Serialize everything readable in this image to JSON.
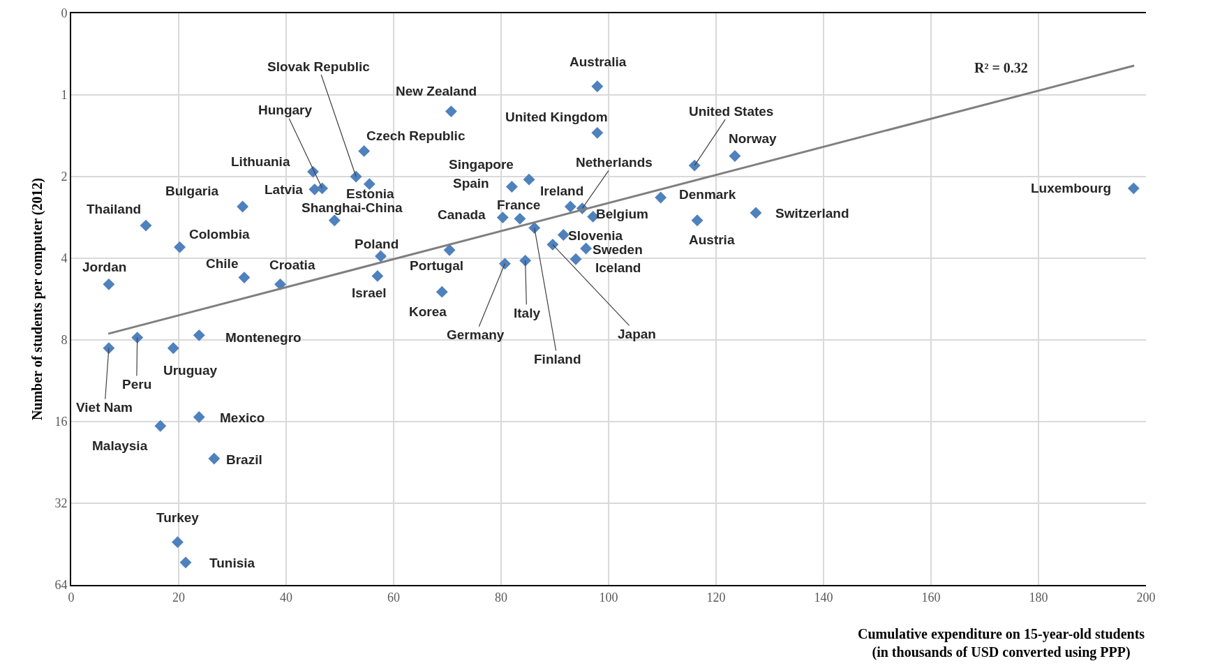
{
  "chart_data": {
    "type": "scatter",
    "xlabel": "Cumulative expenditure on 15-year-old students\n(in thousands of USD converted using PPP)",
    "ylabel": "Number of students per computer (2012)",
    "xlim": [
      0,
      200
    ],
    "xticks": [
      0,
      20,
      40,
      60,
      80,
      100,
      120,
      140,
      160,
      180,
      200
    ],
    "ylim": [
      64,
      0.5
    ],
    "yticks": [
      {
        "value": 0.5,
        "label": "0"
      },
      1,
      2,
      4,
      8,
      16,
      32,
      64
    ],
    "log": "y",
    "grid": true,
    "series": [
      {
        "marker": "diamond",
        "color": "#4f81bd",
        "x": [
          97.9,
          70.7,
          97.9,
          54.5,
          45.0,
          45.3,
          46.7,
          53.0,
          55.5,
          49.0,
          31.9,
          13.9,
          20.2,
          7.0,
          32.2,
          38.9,
          57.6,
          57.0,
          70.4,
          69.0,
          85.2,
          82.0,
          80.3,
          83.5,
          86.2,
          80.7,
          84.5,
          92.9,
          95.1,
          97.1,
          91.6,
          89.6,
          95.8,
          93.9,
          109.7,
          116.5,
          116.0,
          123.5,
          127.4,
          197.7,
          23.8,
          7.0,
          12.3,
          19.0,
          23.8,
          16.6,
          26.6,
          19.8,
          21.3
        ],
        "values": [
          0.93,
          1.15,
          1.38,
          1.61,
          1.92,
          2.23,
          2.21,
          2.0,
          2.13,
          2.9,
          2.58,
          3.03,
          3.64,
          4.99,
          4.71,
          4.99,
          3.93,
          4.65,
          3.73,
          5.32,
          2.05,
          2.18,
          2.83,
          2.86,
          3.09,
          4.19,
          4.08,
          2.58,
          2.62,
          2.81,
          3.28,
          3.56,
          3.68,
          4.03,
          2.39,
          2.9,
          1.82,
          1.68,
          2.72,
          2.21,
          7.69,
          8.58,
          7.84,
          8.58,
          15.4,
          16.6,
          21.9,
          44.5,
          52.9
        ]
      },
      {
        "type": "line",
        "color": "#7f7f7f",
        "line_style": "solid",
        "x": [
          6.9,
          197.8
        ],
        "values": [
          7.59,
          0.78
        ]
      }
    ],
    "annotations": [
      {
        "text": "Australia",
        "x": 97.9,
        "y": 0.93
      },
      {
        "text": "New Zealand",
        "x": 70.7,
        "y": 1.15
      },
      {
        "text": "United Kingdom",
        "x": 97.9,
        "y": 1.38
      },
      {
        "text": "Czech Republic",
        "x": 54.5,
        "y": 1.61
      },
      {
        "text": "Lithuania",
        "x": 45.0,
        "y": 1.92
      },
      {
        "text": "Latvia",
        "x": 45.3,
        "y": 2.23
      },
      {
        "text": "Hungary",
        "x": 46.7,
        "y": 2.21
      },
      {
        "text": "Slovak Republic",
        "x": 53.0,
        "y": 2.0
      },
      {
        "text": "Estonia",
        "x": 55.5,
        "y": 2.13
      },
      {
        "text": "Shanghai-China",
        "x": 49.0,
        "y": 2.9
      },
      {
        "text": "Bulgaria",
        "x": 31.9,
        "y": 2.58
      },
      {
        "text": "Thailand",
        "x": 13.9,
        "y": 3.03
      },
      {
        "text": "Colombia",
        "x": 20.2,
        "y": 3.64
      },
      {
        "text": "Jordan",
        "x": 7.0,
        "y": 4.99
      },
      {
        "text": "Chile",
        "x": 32.2,
        "y": 4.71
      },
      {
        "text": "Croatia",
        "x": 38.9,
        "y": 4.99
      },
      {
        "text": "Poland",
        "x": 57.6,
        "y": 3.93
      },
      {
        "text": "Israel",
        "x": 57.0,
        "y": 4.65
      },
      {
        "text": "Portugal",
        "x": 70.4,
        "y": 3.73
      },
      {
        "text": "Korea",
        "x": 69.0,
        "y": 5.32
      },
      {
        "text": "Singapore",
        "x": 85.2,
        "y": 2.05
      },
      {
        "text": "Spain",
        "x": 82.0,
        "y": 2.18
      },
      {
        "text": "Canada",
        "x": 80.3,
        "y": 2.83
      },
      {
        "text": "France",
        "x": 83.5,
        "y": 2.86
      },
      {
        "text": "Finland",
        "x": 86.2,
        "y": 3.09
      },
      {
        "text": "Germany",
        "x": 80.7,
        "y": 4.19
      },
      {
        "text": "Italy",
        "x": 84.5,
        "y": 4.08
      },
      {
        "text": "Ireland",
        "x": 92.9,
        "y": 2.58
      },
      {
        "text": "Netherlands",
        "x": 95.1,
        "y": 2.62
      },
      {
        "text": "Belgium",
        "x": 97.1,
        "y": 2.81
      },
      {
        "text": "Slovenia",
        "x": 91.6,
        "y": 3.28
      },
      {
        "text": "Japan",
        "x": 89.6,
        "y": 3.56
      },
      {
        "text": "Sweden",
        "x": 95.8,
        "y": 3.68
      },
      {
        "text": "Iceland",
        "x": 93.9,
        "y": 4.03
      },
      {
        "text": "Denmark",
        "x": 109.7,
        "y": 2.39
      },
      {
        "text": "Austria",
        "x": 116.5,
        "y": 2.9
      },
      {
        "text": "United States",
        "x": 116.0,
        "y": 1.82
      },
      {
        "text": "Norway",
        "x": 123.5,
        "y": 1.68
      },
      {
        "text": "Switzerland",
        "x": 127.4,
        "y": 2.72
      },
      {
        "text": "Luxembourg",
        "x": 197.7,
        "y": 2.21
      },
      {
        "text": "Montenegro",
        "x": 23.8,
        "y": 7.69
      },
      {
        "text": "Viet Nam",
        "x": 7.0,
        "y": 8.58
      },
      {
        "text": "Peru",
        "x": 12.3,
        "y": 7.84
      },
      {
        "text": "Uruguay",
        "x": 19.0,
        "y": 8.58
      },
      {
        "text": "Mexico",
        "x": 23.8,
        "y": 15.4
      },
      {
        "text": "Malaysia",
        "x": 16.6,
        "y": 16.6
      },
      {
        "text": "Brazil",
        "x": 26.6,
        "y": 21.9
      },
      {
        "text": "Turkey",
        "x": 19.8,
        "y": 44.5
      },
      {
        "text": "Tunisia",
        "x": 21.3,
        "y": 52.9
      },
      "R² = 0.32"
    ]
  }
}
